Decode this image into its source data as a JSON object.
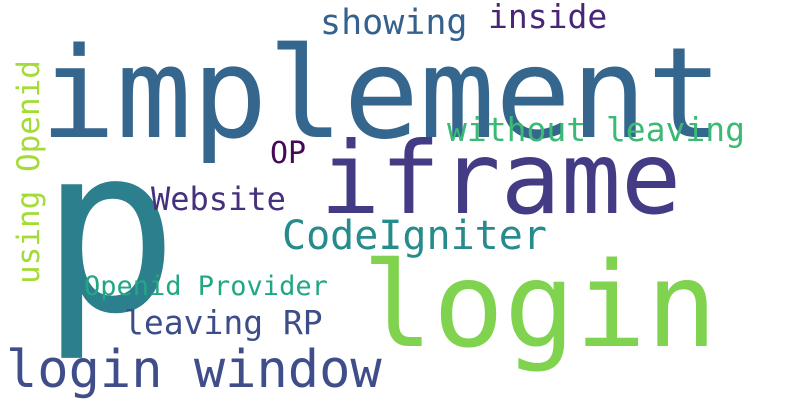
{
  "words": [
    {
      "key": "p",
      "text": "p",
      "color": "#2c7f8d"
    },
    {
      "key": "implement",
      "text": "implement",
      "color": "#35668e"
    },
    {
      "key": "iframe",
      "text": "iframe",
      "color": "#433c84"
    },
    {
      "key": "login",
      "text": "login",
      "color": "#7fd34e"
    },
    {
      "key": "login_window",
      "text": "login window",
      "color": "#3f4e8a"
    },
    {
      "key": "codeigniter",
      "text": "CodeIgniter",
      "color": "#268b8c"
    },
    {
      "key": "without_leaving",
      "text": "without leaving",
      "color": "#3bba75"
    },
    {
      "key": "openid_provider",
      "text": "Openid Provider",
      "color": "#22a784"
    },
    {
      "key": "leaving_rp",
      "text": "leaving RP",
      "color": "#3d4d8a"
    },
    {
      "key": "website",
      "text": "Website",
      "color": "#46307e"
    },
    {
      "key": "showing",
      "text": "showing",
      "color": "#34618d"
    },
    {
      "key": "inside",
      "text": "inside",
      "color": "#482576"
    },
    {
      "key": "op",
      "text": "OP",
      "color": "#450a57"
    },
    {
      "key": "using_openid",
      "text": "using Openid",
      "color": "#a5db36"
    }
  ]
}
